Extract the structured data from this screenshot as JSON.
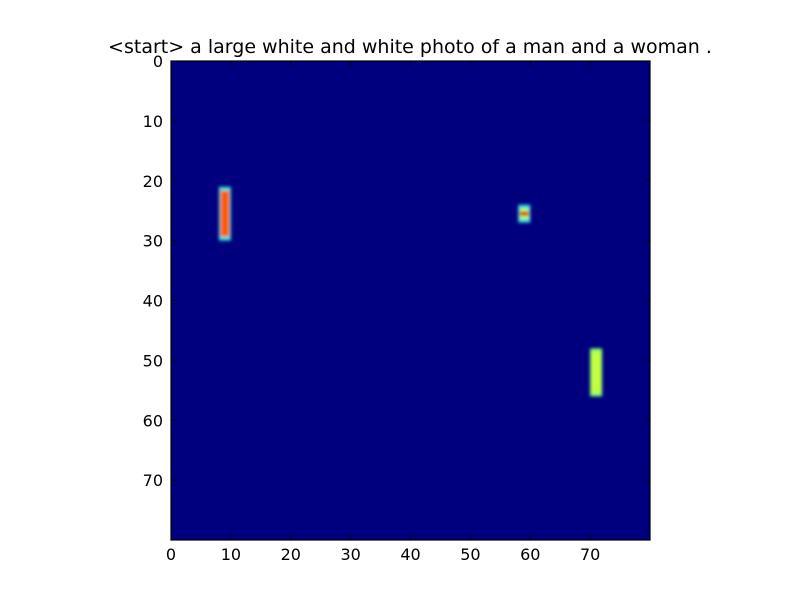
{
  "chart_data": {
    "type": "heatmap",
    "title": "<start> a large white and white photo of a man and a woman .",
    "xlabel": "",
    "ylabel": "",
    "xlim": [
      0,
      80
    ],
    "ylim": [
      80,
      0
    ],
    "x_ticks": [
      0,
      10,
      20,
      30,
      40,
      50,
      60,
      70
    ],
    "y_ticks": [
      0,
      10,
      20,
      30,
      40,
      50,
      60,
      70
    ],
    "colormap": "jet",
    "background_color": "#00007f",
    "grid": false,
    "blobs": [
      {
        "x": [
          8,
          10
        ],
        "y": [
          21,
          30
        ],
        "color": "#ff5a00",
        "edge_color": "#33e0e0"
      },
      {
        "x": [
          58,
          60
        ],
        "y": [
          24,
          27
        ],
        "color": "#d4ff2a",
        "core_color": "#c8102e",
        "edge_color": "#33e0e0"
      },
      {
        "x": [
          70,
          72
        ],
        "y": [
          48,
          56
        ],
        "color": "#c4ff3a",
        "edge_color": "#8cff6e"
      }
    ]
  }
}
